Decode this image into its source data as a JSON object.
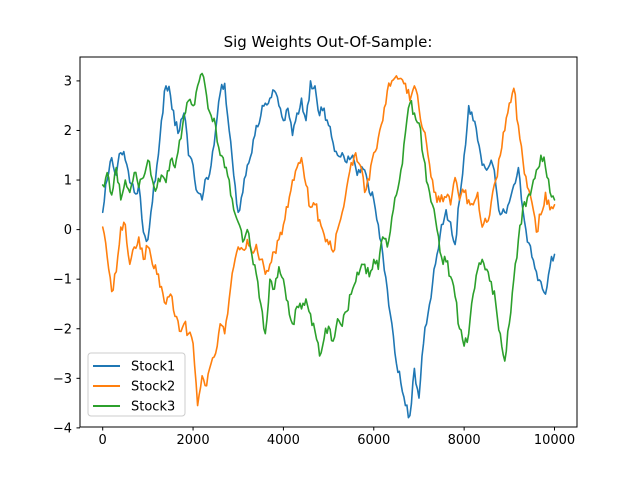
{
  "chart_data": {
    "type": "line",
    "title": "Sig Weights Out-Of-Sample:",
    "grid": false,
    "background": "#ffffff",
    "axis_color": "#000000",
    "legend": {
      "position": "lower left",
      "edge_color": "#cccccc",
      "fill": "#ffffff"
    },
    "xlim": [
      -500,
      10500
    ],
    "ylim": [
      -3.99,
      3.47
    ],
    "xticks": [
      0,
      2000,
      4000,
      6000,
      8000,
      10000
    ],
    "xtick_labels": [
      "0",
      "2000",
      "4000",
      "6000",
      "8000",
      "10000"
    ],
    "yticks": [
      3,
      2,
      1,
      0,
      -1,
      -2,
      -3,
      -4
    ],
    "ytick_labels": [
      "3",
      "2",
      "1",
      "0",
      "−1",
      "−2",
      "−3",
      "−4"
    ],
    "x_start": 0,
    "x_step": 100,
    "noise_amplitude": 0.13,
    "series": [
      {
        "name": "Stock1",
        "color": "#1f77b4",
        "values": [
          0.35,
          1.0,
          1.45,
          1.1,
          1.55,
          1.4,
          0.95,
          0.75,
          0.9,
          -0.05,
          -0.2,
          0.55,
          1.3,
          2.2,
          2.9,
          2.7,
          2.1,
          2.0,
          2.35,
          1.5,
          1.3,
          0.75,
          0.6,
          1.05,
          1.3,
          2.0,
          2.75,
          2.95,
          2.0,
          1.1,
          0.35,
          0.75,
          1.3,
          1.55,
          2.1,
          2.3,
          2.55,
          2.65,
          2.8,
          2.5,
          2.2,
          2.45,
          1.9,
          2.35,
          2.65,
          2.2,
          3.0,
          2.9,
          2.3,
          2.45,
          2.1,
          1.75,
          1.5,
          1.55,
          1.35,
          1.45,
          1.25,
          1.15,
          1.2,
          0.75,
          0.6,
          0.1,
          -0.5,
          -1.2,
          -1.9,
          -2.7,
          -3.1,
          -3.55,
          -3.75,
          -2.8,
          -3.4,
          -2.3,
          -1.7,
          -1.1,
          -0.5,
          0.1,
          0.4,
          0.15,
          -0.3,
          0.6,
          1.5,
          2.5,
          2.2,
          1.8,
          1.3,
          1.2,
          1.4,
          0.9,
          0.3,
          0.35,
          0.55,
          0.9,
          1.25,
          0.4,
          -0.25,
          -0.55,
          -0.85,
          -1.05,
          -1.3,
          -0.75,
          -0.5
        ]
      },
      {
        "name": "Stock2",
        "color": "#ff7f0e",
        "values": [
          0.05,
          -0.55,
          -1.25,
          -0.85,
          0.05,
          0.1,
          -0.7,
          -0.35,
          -0.15,
          -0.6,
          -0.35,
          -0.7,
          -0.9,
          -1.15,
          -1.5,
          -1.3,
          -1.75,
          -2.05,
          -1.9,
          -2.1,
          -2.3,
          -3.55,
          -2.95,
          -3.15,
          -2.7,
          -2.5,
          -1.9,
          -2.1,
          -1.4,
          -0.75,
          -0.35,
          -0.4,
          -0.2,
          -0.45,
          -0.3,
          -0.6,
          -0.9,
          -0.7,
          -0.45,
          -0.2,
          0.1,
          0.45,
          1.0,
          1.25,
          1.45,
          0.9,
          0.45,
          0.5,
          0.2,
          -0.1,
          -0.3,
          -0.45,
          0.0,
          0.35,
          0.85,
          1.35,
          1.55,
          1.3,
          0.75,
          1.0,
          1.55,
          1.85,
          2.2,
          2.8,
          3.0,
          3.1,
          3.05,
          2.95,
          2.6,
          2.9,
          2.45,
          2.0,
          1.5,
          1.0,
          0.55,
          0.7,
          0.65,
          0.5,
          1.05,
          0.6,
          0.75,
          0.6,
          0.5,
          0.75,
          0.05,
          0.15,
          0.55,
          1.0,
          1.5,
          2.0,
          2.55,
          2.85,
          2.1,
          1.4,
          0.85,
          0.55,
          -0.05,
          0.3,
          0.75,
          0.4,
          0.5
        ]
      },
      {
        "name": "Stock3",
        "color": "#2ca02c",
        "values": [
          0.9,
          1.15,
          0.7,
          1.25,
          0.6,
          1.0,
          0.75,
          1.15,
          0.85,
          1.05,
          1.4,
          1.0,
          0.85,
          1.1,
          0.95,
          1.4,
          1.25,
          1.8,
          2.3,
          2.6,
          2.5,
          2.9,
          3.15,
          2.7,
          2.3,
          2.1,
          1.5,
          1.25,
          1.0,
          0.4,
          0.15,
          -0.25,
          0.0,
          -0.5,
          -0.9,
          -1.5,
          -2.1,
          -1.0,
          -1.2,
          -0.75,
          -1.0,
          -1.45,
          -1.9,
          -1.55,
          -1.6,
          -1.4,
          -1.7,
          -2.05,
          -2.55,
          -2.2,
          -1.95,
          -2.25,
          -1.8,
          -1.95,
          -1.65,
          -1.3,
          -1.05,
          -0.8,
          -0.7,
          -0.95,
          -0.6,
          -0.8,
          -0.15,
          -0.35,
          0.25,
          0.7,
          1.2,
          1.95,
          2.55,
          2.35,
          2.15,
          1.45,
          0.9,
          0.5,
          0.0,
          -0.55,
          -0.65,
          -0.95,
          -1.35,
          -2.0,
          -2.35,
          -2.1,
          -1.3,
          -0.8,
          -0.6,
          -0.8,
          -1.05,
          -1.5,
          -2.1,
          -2.65,
          -1.9,
          -1.0,
          -0.2,
          0.45,
          0.65,
          0.85,
          1.2,
          1.5,
          1.25,
          0.75,
          0.6
        ]
      }
    ]
  }
}
